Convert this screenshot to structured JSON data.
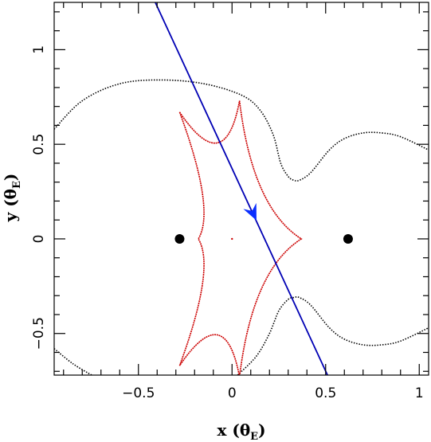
{
  "chart_data": {
    "type": "diagram",
    "xlabel": {
      "prefix": "x (",
      "theta": "θ",
      "sub": "E",
      "suffix": ")"
    },
    "ylabel": {
      "prefix": "y (",
      "theta": "θ",
      "sub": "E",
      "suffix": ")"
    },
    "xlim": [
      -0.95,
      1.05
    ],
    "ylim": [
      -0.72,
      1.25
    ],
    "x_ticks": [
      {
        "value": -0.5,
        "label": "−0.5"
      },
      {
        "value": 0,
        "label": "0"
      },
      {
        "value": 0.5,
        "label": "0.5"
      },
      {
        "value": 1,
        "label": "1"
      }
    ],
    "y_ticks": [
      {
        "value": -0.5,
        "label": "−0.5"
      },
      {
        "value": 0,
        "label": "0"
      },
      {
        "value": 0.5,
        "label": "0.5"
      },
      {
        "value": 1,
        "label": "1"
      }
    ],
    "lens_points": [
      {
        "x": -0.28,
        "y": 0.0
      },
      {
        "x": 0.62,
        "y": 0.0
      }
    ],
    "source_trajectory": {
      "color": "#0000b4",
      "start": [
        -0.41,
        1.25
      ],
      "end": [
        0.51,
        -0.72
      ],
      "arrow_at": [
        0.12,
        0.12
      ]
    },
    "caustic": {
      "color": "#cc0000",
      "cusps": [
        [
          -0.28,
          0.67
        ],
        [
          0.04,
          0.73
        ],
        [
          0.37,
          0.0
        ],
        [
          0.04,
          -0.73
        ],
        [
          -0.28,
          -0.67
        ],
        [
          -0.18,
          0.0
        ]
      ],
      "small_caustic": [
        0.0,
        0.0
      ]
    },
    "critical_curve": {
      "color": "#000000",
      "left_outer": [
        [
          -0.95,
          0.58
        ],
        [
          -0.8,
          0.73
        ],
        [
          -0.6,
          0.82
        ],
        [
          -0.38,
          0.84
        ],
        [
          -0.15,
          0.82
        ],
        [
          0.05,
          0.76
        ],
        [
          0.15,
          0.68
        ],
        [
          0.22,
          0.55
        ],
        [
          0.26,
          0.4
        ],
        [
          0.3,
          0.33
        ],
        [
          0.33,
          0.31
        ],
        [
          0.36,
          0.31
        ],
        [
          0.42,
          0.35
        ],
        [
          0.52,
          0.47
        ],
        [
          0.6,
          0.53
        ],
        [
          0.7,
          0.56
        ],
        [
          0.8,
          0.56
        ],
        [
          0.9,
          0.54
        ],
        [
          1.05,
          0.47
        ]
      ],
      "left_outer_bottom": [
        [
          -0.95,
          -0.58
        ],
        [
          -0.85,
          -0.66
        ],
        [
          -0.75,
          -0.72
        ]
      ],
      "lower": [
        [
          0.03,
          -0.72
        ],
        [
          0.13,
          -0.62
        ],
        [
          0.2,
          -0.5
        ],
        [
          0.25,
          -0.38
        ],
        [
          0.3,
          -0.32
        ],
        [
          0.33,
          -0.31
        ],
        [
          0.36,
          -0.31
        ],
        [
          0.42,
          -0.35
        ],
        [
          0.52,
          -0.47
        ],
        [
          0.6,
          -0.53
        ],
        [
          0.7,
          -0.56
        ],
        [
          0.8,
          -0.56
        ],
        [
          0.9,
          -0.54
        ],
        [
          1.05,
          -0.47
        ]
      ]
    }
  }
}
